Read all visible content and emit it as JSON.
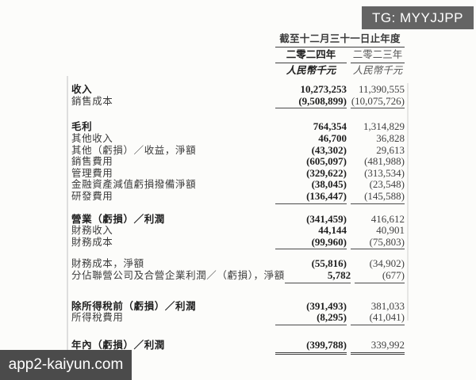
{
  "watermarks": {
    "top_right": "TG: MYYJJPP",
    "bottom_left": "app2-kaiyun.com"
  },
  "colors": {
    "top_right_bg": "#646464",
    "bottom_left_bg": "#4b4b4b",
    "page_bg": "#fcfcfa",
    "text": "#3a3a3a"
  },
  "table": {
    "period_header": "截至十二月三十一日止年度",
    "columns": [
      {
        "year": "二零二四年",
        "unit": "人民幣千元"
      },
      {
        "year": "二零二三年",
        "unit": "人民幣千元"
      }
    ],
    "rows": [
      {
        "label": "收入",
        "y2024": "10,273,253",
        "y2023": "11,390,555"
      },
      {
        "label": "銷售成本",
        "y2024": "(9,508,899)",
        "y2023": "(10,075,726)"
      },
      {
        "label": "毛利",
        "y2024": "764,354",
        "y2023": "1,314,829"
      },
      {
        "label": "其他收入",
        "y2024": "46,700",
        "y2023": "36,828"
      },
      {
        "label": "其他（虧損）／收益，淨額",
        "y2024": "(43,302)",
        "y2023": "29,613"
      },
      {
        "label": "銷售費用",
        "y2024": "(605,097)",
        "y2023": "(481,988)"
      },
      {
        "label": "管理費用",
        "y2024": "(329,622)",
        "y2023": "(313,534)"
      },
      {
        "label": "金融資產減值虧損撥備淨額",
        "y2024": "(38,045)",
        "y2023": "(23,548)"
      },
      {
        "label": "研發費用",
        "y2024": "(136,447)",
        "y2023": "(145,588)"
      },
      {
        "label": "營業（虧損）／利潤",
        "y2024": "(341,459)",
        "y2023": "416,612"
      },
      {
        "label": "財務收入",
        "y2024": "44,144",
        "y2023": "40,901"
      },
      {
        "label": "財務成本",
        "y2024": "(99,960)",
        "y2023": "(75,803)"
      },
      {
        "label": "財務成本，淨額",
        "y2024": "(55,816)",
        "y2023": "(34,902)"
      },
      {
        "label": "分佔聯營公司及合營企業利潤／（虧損），淨額",
        "y2024": "5,782",
        "y2023": "(677)"
      },
      {
        "label": "除所得稅前（虧損）／利潤",
        "y2024": "(391,493)",
        "y2023": "381,033"
      },
      {
        "label": "所得稅費用",
        "y2024": "(8,295)",
        "y2023": "(41,041)"
      },
      {
        "label": "年內（虧損）／利潤",
        "y2024": "(399,788)",
        "y2023": "339,992"
      }
    ]
  }
}
